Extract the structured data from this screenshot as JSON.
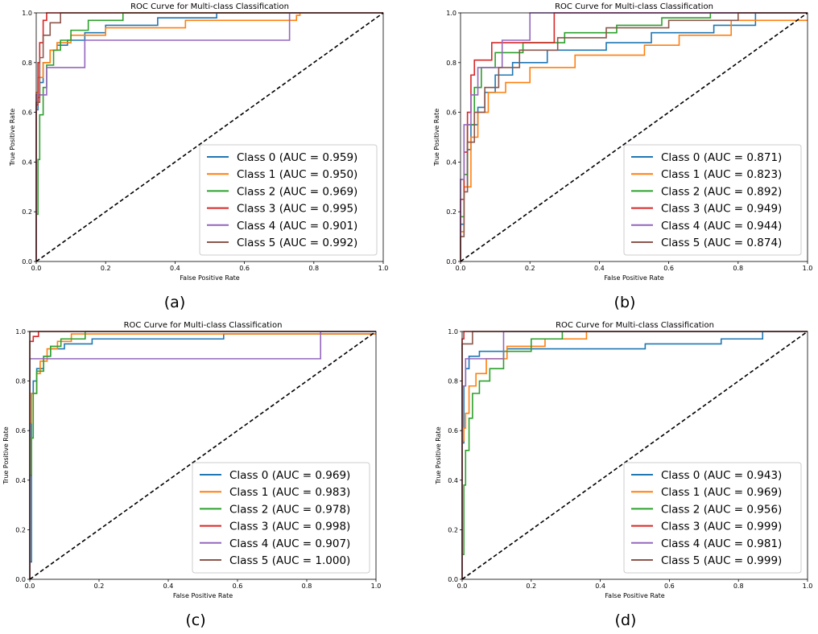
{
  "chart_data": [
    {
      "type": "line",
      "panel": "(a)",
      "title": "ROC Curve for Multi-class Classification",
      "xlabel": "False Positive Rate",
      "ylabel": "True Positive Rate",
      "xlim": [
        0,
        1
      ],
      "ylim": [
        0,
        1
      ],
      "xticks": [
        "0.0",
        "0.2",
        "0.4",
        "0.6",
        "0.8",
        "1.0"
      ],
      "yticks": [
        "0.0",
        "0.2",
        "0.4",
        "0.6",
        "0.8",
        "1.0"
      ],
      "legend_position": "lower-right",
      "diagonal": {
        "x": [
          0,
          1
        ],
        "y": [
          0,
          1
        ],
        "style": "dashed",
        "color": "#000000"
      },
      "series": [
        {
          "name": "Class 0 (AUC = 0.959)",
          "color": "#1f77b4",
          "x": [
            0,
            0,
            0.005,
            0.005,
            0.01,
            0.01,
            0.02,
            0.02,
            0.04,
            0.04,
            0.06,
            0.06,
            0.09,
            0.09,
            0.14,
            0.14,
            0.2,
            0.2,
            0.35,
            0.35,
            0.52,
            0.52,
            1.0
          ],
          "y": [
            0,
            0.61,
            0.61,
            0.66,
            0.66,
            0.72,
            0.72,
            0.8,
            0.8,
            0.85,
            0.85,
            0.87,
            0.87,
            0.89,
            0.89,
            0.92,
            0.92,
            0.95,
            0.95,
            0.98,
            0.98,
            1.0,
            1.0
          ]
        },
        {
          "name": "Class 1 (AUC = 0.950)",
          "color": "#ff7f0e",
          "x": [
            0,
            0,
            0.005,
            0.005,
            0.02,
            0.02,
            0.04,
            0.04,
            0.06,
            0.06,
            0.1,
            0.1,
            0.2,
            0.2,
            0.43,
            0.43,
            0.75,
            0.75,
            0.76,
            0.76,
            1.0
          ],
          "y": [
            0,
            0.68,
            0.68,
            0.74,
            0.74,
            0.8,
            0.8,
            0.85,
            0.85,
            0.88,
            0.88,
            0.91,
            0.91,
            0.94,
            0.94,
            0.97,
            0.97,
            0.99,
            0.99,
            1.0,
            1.0
          ],
          "color_note": ""
        },
        {
          "name": "Class 2 (AUC = 0.969)",
          "color": "#2ca02c",
          "x": [
            0,
            0,
            0.005,
            0.005,
            0.01,
            0.01,
            0.02,
            0.02,
            0.03,
            0.03,
            0.05,
            0.05,
            0.07,
            0.07,
            0.1,
            0.1,
            0.15,
            0.15,
            0.25,
            0.25,
            1.0
          ],
          "y": [
            0,
            0.19,
            0.19,
            0.41,
            0.41,
            0.59,
            0.59,
            0.7,
            0.7,
            0.79,
            0.79,
            0.85,
            0.85,
            0.89,
            0.89,
            0.93,
            0.93,
            0.97,
            0.97,
            1.0,
            1.0
          ]
        },
        {
          "name": "Class 3 (AUC = 0.995)",
          "color": "#d62728",
          "x": [
            0,
            0,
            0.005,
            0.005,
            0.01,
            0.01,
            0.02,
            0.02,
            0.03,
            0.03,
            1.0
          ],
          "y": [
            0,
            0.63,
            0.63,
            0.8,
            0.8,
            0.88,
            0.88,
            0.97,
            0.97,
            1.0,
            1.0
          ]
        },
        {
          "name": "Class 4 (AUC = 0.901)",
          "color": "#9467bd",
          "x": [
            0,
            0,
            0.005,
            0.005,
            0.03,
            0.03,
            0.07,
            0.07,
            0.14,
            0.14,
            0.73,
            0.73,
            1.0
          ],
          "y": [
            0,
            0.67,
            0.67,
            0.67,
            0.67,
            0.78,
            0.78,
            0.78,
            0.78,
            0.89,
            0.89,
            1.0,
            1.0
          ]
        },
        {
          "name": "Class 5 (AUC = 0.992)",
          "color": "#8c564b",
          "x": [
            0,
            0,
            0.01,
            0.01,
            0.02,
            0.02,
            0.04,
            0.04,
            0.07,
            0.07,
            1.0
          ],
          "y": [
            0,
            0.64,
            0.64,
            0.82,
            0.82,
            0.91,
            0.91,
            0.96,
            0.96,
            1.0,
            1.0
          ]
        }
      ]
    },
    {
      "type": "line",
      "panel": "(b)",
      "title": "ROC Curve for Multi-class Classification",
      "xlabel": "False Positive Rate",
      "ylabel": "True Positive Rate",
      "xlim": [
        0,
        1
      ],
      "ylim": [
        0,
        1
      ],
      "xticks": [
        "0.0",
        "0.2",
        "0.4",
        "0.6",
        "0.8",
        "1.0"
      ],
      "yticks": [
        "0.0",
        "0.2",
        "0.4",
        "0.6",
        "0.8",
        "1.0"
      ],
      "legend_position": "lower-right",
      "diagonal": {
        "x": [
          0,
          1
        ],
        "y": [
          0,
          1
        ],
        "style": "dashed",
        "color": "#000000"
      },
      "series": [
        {
          "name": "Class 0 (AUC = 0.871)",
          "color": "#1f77b4",
          "x": [
            0,
            0,
            0.01,
            0.01,
            0.02,
            0.02,
            0.03,
            0.03,
            0.05,
            0.05,
            0.07,
            0.07,
            0.1,
            0.1,
            0.15,
            0.15,
            0.25,
            0.25,
            0.42,
            0.42,
            0.55,
            0.55,
            0.73,
            0.73,
            0.85,
            0.85,
            1.0
          ],
          "y": [
            0,
            0.15,
            0.15,
            0.3,
            0.3,
            0.45,
            0.45,
            0.55,
            0.55,
            0.62,
            0.62,
            0.68,
            0.68,
            0.75,
            0.75,
            0.8,
            0.8,
            0.85,
            0.85,
            0.88,
            0.88,
            0.92,
            0.92,
            0.95,
            0.95,
            1.0,
            1.0
          ]
        },
        {
          "name": "Class 1 (AUC = 0.823)",
          "color": "#ff7f0e",
          "x": [
            0,
            0,
            0.01,
            0.01,
            0.03,
            0.03,
            0.05,
            0.05,
            0.08,
            0.08,
            0.13,
            0.13,
            0.2,
            0.2,
            0.33,
            0.33,
            0.53,
            0.53,
            0.63,
            0.63,
            0.78,
            0.78,
            1.0
          ],
          "y": [
            0,
            0.12,
            0.12,
            0.3,
            0.3,
            0.5,
            0.5,
            0.6,
            0.6,
            0.68,
            0.68,
            0.72,
            0.72,
            0.78,
            0.78,
            0.83,
            0.83,
            0.87,
            0.87,
            0.91,
            0.91,
            0.97,
            0.97
          ]
        },
        {
          "name": "Class 2 (AUC = 0.892)",
          "color": "#2ca02c",
          "x": [
            0,
            0,
            0.01,
            0.01,
            0.02,
            0.02,
            0.04,
            0.04,
            0.06,
            0.06,
            0.1,
            0.1,
            0.18,
            0.18,
            0.3,
            0.3,
            0.45,
            0.45,
            0.58,
            0.58,
            0.72,
            0.72,
            1.0
          ],
          "y": [
            0,
            0.18,
            0.18,
            0.35,
            0.35,
            0.55,
            0.55,
            0.7,
            0.7,
            0.78,
            0.78,
            0.84,
            0.84,
            0.88,
            0.88,
            0.92,
            0.92,
            0.95,
            0.95,
            0.98,
            0.98,
            1.0,
            1.0
          ]
        },
        {
          "name": "Class 3 (AUC = 0.949)",
          "color": "#d62728",
          "x": [
            0,
            0,
            0.01,
            0.01,
            0.02,
            0.02,
            0.03,
            0.03,
            0.04,
            0.04,
            0.09,
            0.09,
            0.27,
            0.27,
            1.0
          ],
          "y": [
            0,
            0.25,
            0.25,
            0.44,
            0.44,
            0.6,
            0.6,
            0.75,
            0.75,
            0.81,
            0.81,
            0.88,
            0.88,
            1.0,
            1.0
          ]
        },
        {
          "name": "Class 4 (AUC = 0.944)",
          "color": "#9467bd",
          "x": [
            0,
            0,
            0.01,
            0.01,
            0.03,
            0.03,
            0.05,
            0.05,
            0.12,
            0.12,
            0.2,
            0.2,
            1.0
          ],
          "y": [
            0,
            0.33,
            0.33,
            0.55,
            0.55,
            0.67,
            0.67,
            0.78,
            0.78,
            0.89,
            0.89,
            1.0,
            1.0
          ]
        },
        {
          "name": "Class 5 (AUC = 0.874)",
          "color": "#8c564b",
          "x": [
            0,
            0,
            0.01,
            0.01,
            0.02,
            0.02,
            0.04,
            0.04,
            0.07,
            0.07,
            0.11,
            0.11,
            0.17,
            0.17,
            0.28,
            0.28,
            0.42,
            0.42,
            0.6,
            0.6,
            0.8,
            0.8,
            1.0
          ],
          "y": [
            0,
            0.1,
            0.1,
            0.28,
            0.28,
            0.48,
            0.48,
            0.6,
            0.6,
            0.7,
            0.7,
            0.78,
            0.78,
            0.85,
            0.85,
            0.9,
            0.9,
            0.94,
            0.94,
            0.97,
            0.97,
            1.0,
            1.0
          ]
        }
      ]
    },
    {
      "type": "line",
      "panel": "(c)",
      "title": "ROC Curve for Multi-class Classification",
      "xlabel": "False Positive Rate",
      "ylabel": "True Positive Rate",
      "xlim": [
        0,
        1
      ],
      "ylim": [
        0,
        1
      ],
      "xticks": [
        "0.0",
        "0.2",
        "0.4",
        "0.6",
        "0.8",
        "1.0"
      ],
      "yticks": [
        "0.0",
        "0.2",
        "0.4",
        "0.6",
        "0.8",
        "1.0"
      ],
      "legend_position": "lower-right",
      "diagonal": {
        "x": [
          0,
          1
        ],
        "y": [
          0,
          1
        ],
        "style": "dashed",
        "color": "#000000"
      },
      "series": [
        {
          "name": "Class 0 (AUC = 0.969)",
          "color": "#1f77b4",
          "x": [
            0,
            0,
            0.005,
            0.005,
            0.01,
            0.01,
            0.02,
            0.02,
            0.04,
            0.04,
            0.06,
            0.06,
            0.1,
            0.1,
            0.18,
            0.18,
            0.56,
            0.56,
            1.0
          ],
          "y": [
            0,
            0.07,
            0.07,
            0.75,
            0.75,
            0.8,
            0.8,
            0.85,
            0.85,
            0.9,
            0.9,
            0.93,
            0.93,
            0.95,
            0.95,
            0.97,
            0.97,
            0.99,
            0.99
          ]
        },
        {
          "name": "Class 1 (AUC = 0.983)",
          "color": "#ff7f0e",
          "x": [
            0,
            0,
            0.005,
            0.005,
            0.02,
            0.02,
            0.03,
            0.03,
            0.05,
            0.05,
            0.08,
            0.08,
            0.12,
            0.12,
            1.0
          ],
          "y": [
            0,
            0.63,
            0.63,
            0.75,
            0.75,
            0.83,
            0.83,
            0.88,
            0.88,
            0.93,
            0.93,
            0.96,
            0.96,
            0.99,
            0.99
          ]
        },
        {
          "name": "Class 2 (AUC = 0.978)",
          "color": "#2ca02c",
          "x": [
            0,
            0,
            0.005,
            0.005,
            0.01,
            0.01,
            0.02,
            0.02,
            0.04,
            0.04,
            0.06,
            0.06,
            0.09,
            0.09,
            0.16,
            0.16,
            1.0
          ],
          "y": [
            0,
            0.42,
            0.42,
            0.57,
            0.57,
            0.75,
            0.75,
            0.84,
            0.84,
            0.9,
            0.9,
            0.94,
            0.94,
            0.97,
            0.97,
            1.0,
            1.0
          ]
        },
        {
          "name": "Class 3 (AUC = 0.998)",
          "color": "#d62728",
          "x": [
            0,
            0,
            0.01,
            0.01,
            0.025,
            0.025,
            1.0
          ],
          "y": [
            0,
            0.96,
            0.96,
            0.98,
            0.98,
            1.0,
            1.0
          ]
        },
        {
          "name": "Class 4 (AUC = 0.907)",
          "color": "#9467bd",
          "x": [
            0,
            0,
            0.06,
            0.06,
            0.84,
            0.84,
            1.0
          ],
          "y": [
            0,
            0.89,
            0.89,
            0.89,
            0.89,
            1.0,
            1.0
          ]
        },
        {
          "name": "Class 5 (AUC = 1.000)",
          "color": "#8c564b",
          "x": [
            0,
            0,
            1.0
          ],
          "y": [
            0,
            1.0,
            1.0
          ]
        }
      ]
    },
    {
      "type": "line",
      "panel": "(d)",
      "title": "ROC Curve for Multi-class Classification",
      "xlabel": "False Positive Rate",
      "ylabel": "True Positive Rate",
      "xlim": [
        0,
        1
      ],
      "ylim": [
        0,
        1
      ],
      "xticks": [
        "0.0",
        "0.2",
        "0.4",
        "0.6",
        "0.8",
        "1.0"
      ],
      "yticks": [
        "0.0",
        "0.2",
        "0.4",
        "0.6",
        "0.8",
        "1.0"
      ],
      "legend_position": "lower-right",
      "diagonal": {
        "x": [
          0,
          1
        ],
        "y": [
          0,
          1
        ],
        "style": "dashed",
        "color": "#000000"
      },
      "series": [
        {
          "name": "Class 0 (AUC = 0.943)",
          "color": "#1f77b4",
          "x": [
            0,
            0,
            0.005,
            0.005,
            0.01,
            0.01,
            0.02,
            0.02,
            0.05,
            0.05,
            0.13,
            0.13,
            0.53,
            0.53,
            0.75,
            0.75,
            0.87,
            0.87,
            1.0
          ],
          "y": [
            0,
            0.55,
            0.55,
            0.78,
            0.78,
            0.85,
            0.85,
            0.9,
            0.9,
            0.92,
            0.92,
            0.93,
            0.93,
            0.95,
            0.95,
            0.97,
            0.97,
            1.0,
            1.0
          ]
        },
        {
          "name": "Class 1 (AUC = 0.969)",
          "color": "#ff7f0e",
          "x": [
            0,
            0,
            0.005,
            0.005,
            0.01,
            0.01,
            0.02,
            0.02,
            0.04,
            0.04,
            0.07,
            0.07,
            0.13,
            0.13,
            0.24,
            0.24,
            0.36,
            0.36,
            1.0
          ],
          "y": [
            0,
            0.56,
            0.56,
            0.61,
            0.61,
            0.67,
            0.67,
            0.78,
            0.78,
            0.83,
            0.83,
            0.89,
            0.89,
            0.94,
            0.94,
            0.97,
            0.97,
            1.0,
            1.0
          ]
        },
        {
          "name": "Class 2 (AUC = 0.956)",
          "color": "#2ca02c",
          "x": [
            0,
            0,
            0.005,
            0.005,
            0.01,
            0.01,
            0.02,
            0.02,
            0.03,
            0.03,
            0.05,
            0.05,
            0.08,
            0.08,
            0.12,
            0.12,
            0.2,
            0.2,
            0.29,
            0.29,
            1.0
          ],
          "y": [
            0,
            0.1,
            0.1,
            0.38,
            0.38,
            0.52,
            0.52,
            0.65,
            0.65,
            0.75,
            0.75,
            0.8,
            0.8,
            0.85,
            0.85,
            0.92,
            0.92,
            0.97,
            0.97,
            1.0,
            1.0
          ]
        },
        {
          "name": "Class 3 (AUC = 0.999)",
          "color": "#d62728",
          "x": [
            0,
            0,
            0.005,
            0.005,
            1.0
          ],
          "y": [
            0,
            0.97,
            0.97,
            1.0,
            1.0
          ]
        },
        {
          "name": "Class 4 (AUC = 0.981)",
          "color": "#9467bd",
          "x": [
            0,
            0,
            0.01,
            0.01,
            0.12,
            0.12,
            1.0
          ],
          "y": [
            0,
            0.78,
            0.78,
            0.89,
            0.89,
            1.0,
            1.0
          ]
        },
        {
          "name": "Class 5 (AUC = 0.999)",
          "color": "#8c564b",
          "x": [
            0,
            0,
            0.03,
            0.03,
            1.0
          ],
          "y": [
            0,
            0.95,
            0.95,
            1.0,
            1.0
          ]
        }
      ]
    }
  ]
}
